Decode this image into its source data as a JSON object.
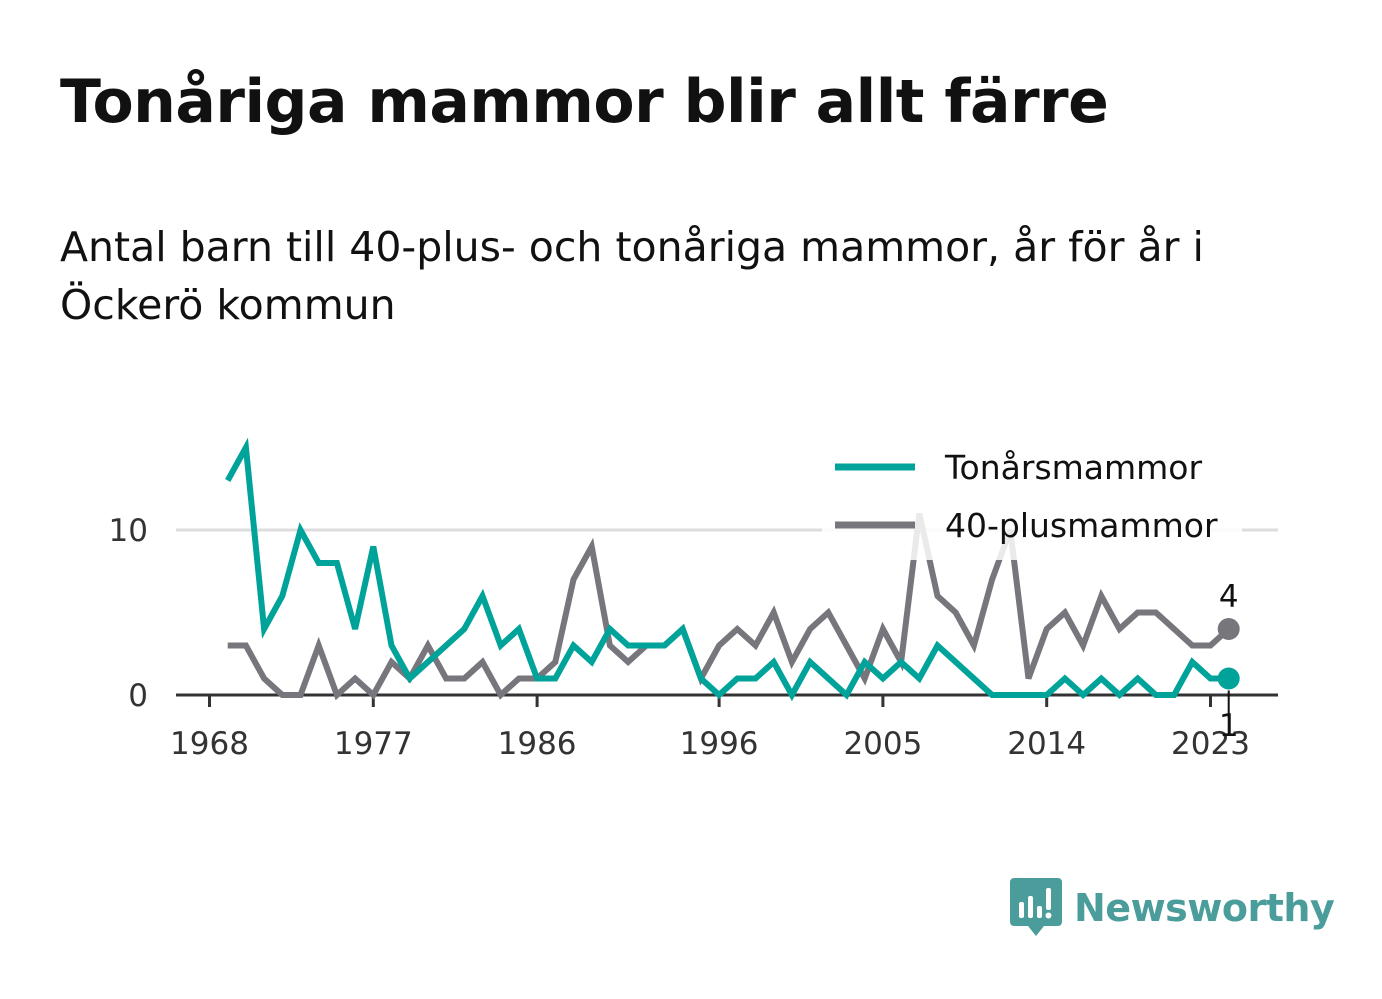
{
  "title": "Tonåriga mammor blir allt färre",
  "subtitle": "Antal barn till 40-plus- och tonåriga mammor, år för år i Öckerö kommun",
  "brand": {
    "name": "Newsworthy",
    "icon": "newsworthy-logo-icon",
    "color": "#4a9d9a"
  },
  "colors": {
    "teen": "#00a399",
    "forty": "#77767c",
    "grid": "#dddddd",
    "axis": "#333333"
  },
  "chart_data": {
    "type": "line",
    "x": [
      1969,
      1970,
      1971,
      1972,
      1973,
      1974,
      1975,
      1976,
      1977,
      1978,
      1979,
      1980,
      1981,
      1982,
      1983,
      1984,
      1985,
      1986,
      1987,
      1988,
      1989,
      1990,
      1991,
      1992,
      1993,
      1994,
      1995,
      1996,
      1997,
      1998,
      1999,
      2000,
      2001,
      2002,
      2003,
      2004,
      2005,
      2006,
      2007,
      2008,
      2009,
      2010,
      2011,
      2012,
      2013,
      2014,
      2015,
      2016,
      2017,
      2018,
      2019,
      2020,
      2021,
      2022,
      2023,
      2024
    ],
    "series": [
      {
        "name": "Tonårsmammor",
        "color": "#00a399",
        "values": [
          13,
          15,
          4,
          6,
          10,
          8,
          8,
          4,
          9,
          3,
          1,
          2,
          3,
          4,
          6,
          3,
          4,
          1,
          1,
          3,
          2,
          4,
          3,
          3,
          3,
          4,
          1,
          0,
          1,
          1,
          2,
          0,
          2,
          1,
          0,
          2,
          1,
          2,
          1,
          3,
          2,
          1,
          0,
          0,
          0,
          0,
          1,
          0,
          1,
          0,
          1,
          0,
          0,
          2,
          1,
          1
        ]
      },
      {
        "name": "40-plusmammor",
        "color": "#77767c",
        "values": [
          3,
          3,
          1,
          0,
          0,
          3,
          0,
          1,
          0,
          2,
          1,
          3,
          1,
          1,
          2,
          0,
          1,
          1,
          2,
          7,
          9,
          3,
          2,
          3,
          3,
          4,
          1,
          3,
          4,
          3,
          5,
          2,
          4,
          5,
          3,
          1,
          4,
          2,
          11,
          6,
          5,
          3,
          7,
          10,
          1,
          4,
          5,
          3,
          6,
          4,
          5,
          5,
          4,
          3,
          3,
          4
        ]
      }
    ],
    "x_ticks": [
      "1968",
      "1977",
      "1986",
      "1996",
      "2005",
      "2014",
      "2023"
    ],
    "y_ticks": [
      "0",
      "10"
    ],
    "ylim": [
      0,
      15
    ],
    "end_labels": [
      {
        "series": "40-plusmammor",
        "text": "4"
      },
      {
        "series": "Tonårsmammor",
        "text": "1"
      }
    ],
    "legend_position": "top-right",
    "grid": "horizontal"
  }
}
